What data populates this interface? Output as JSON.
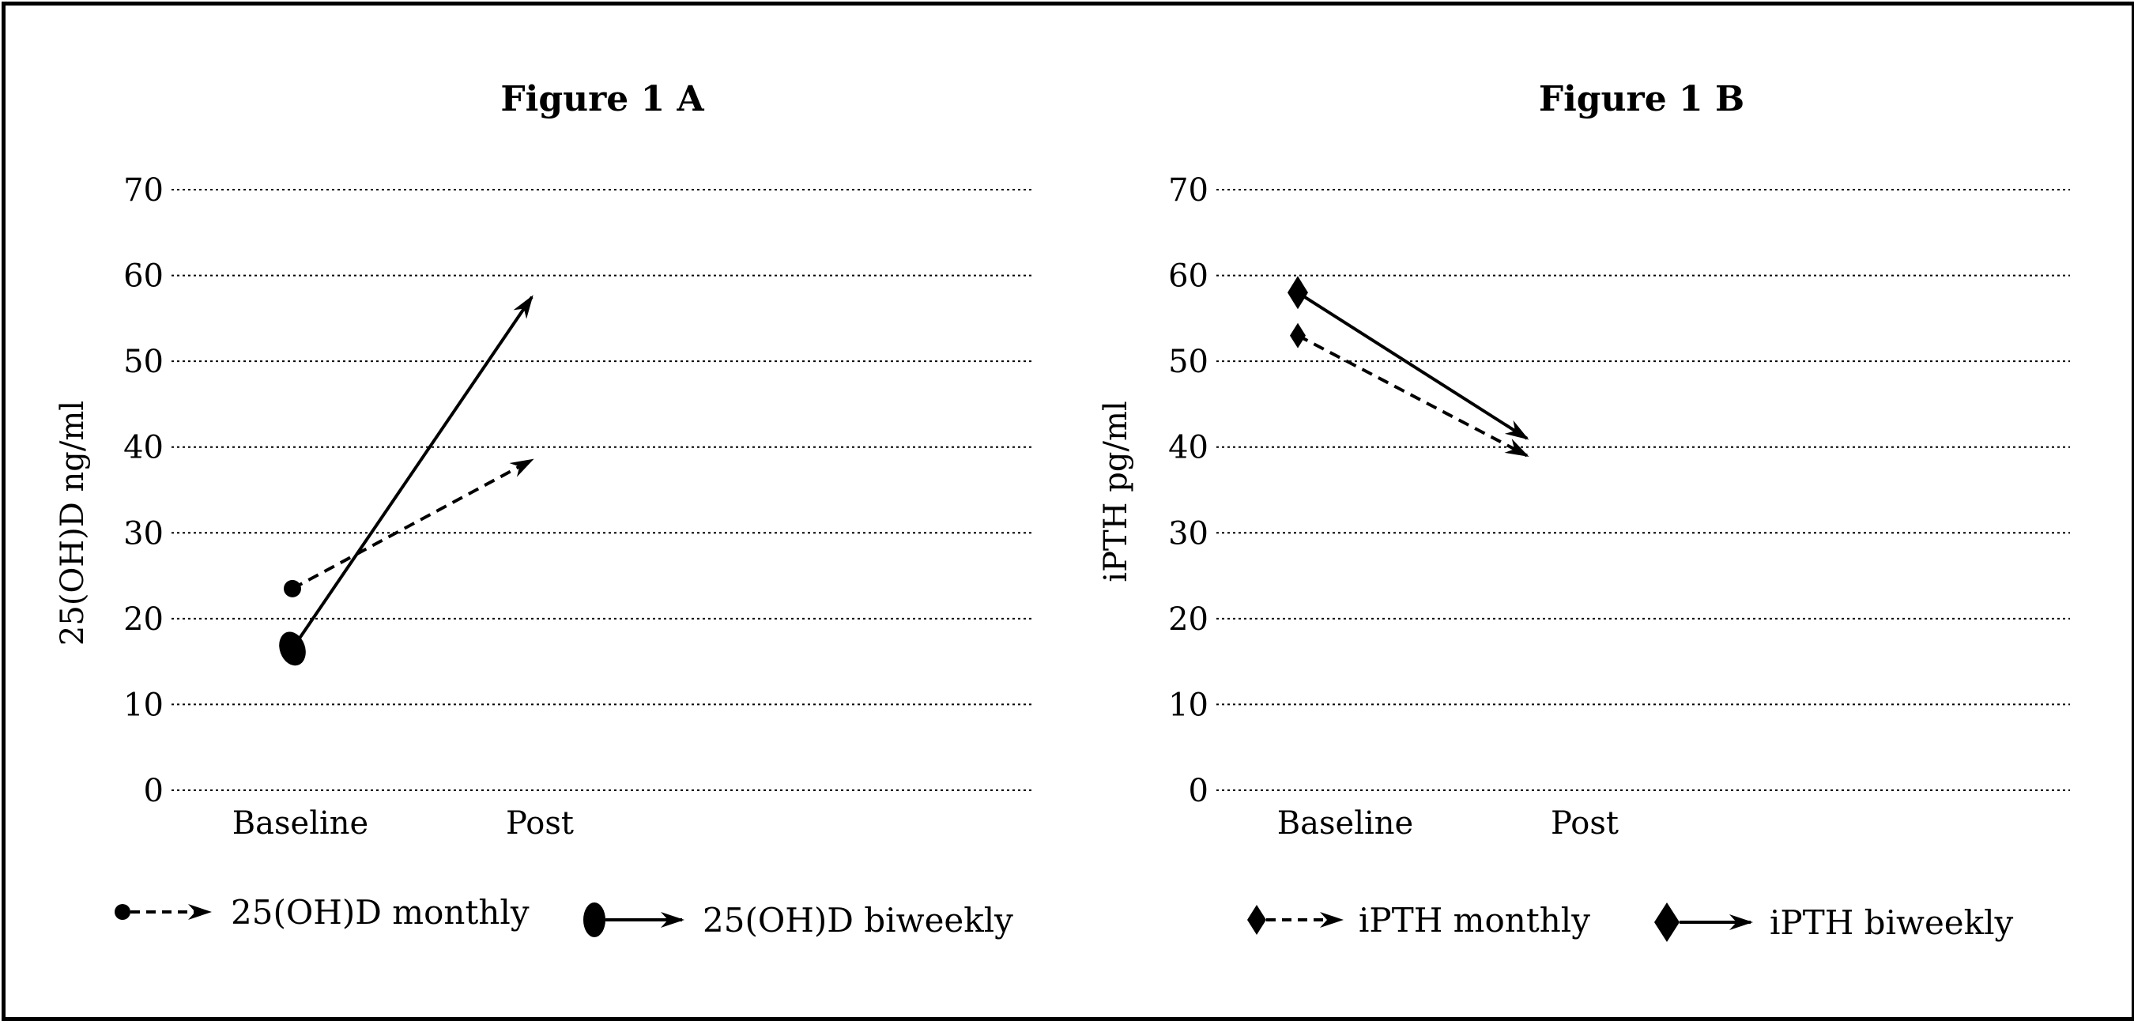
{
  "chart_data": [
    {
      "type": "line",
      "title": "Figure 1 A",
      "ylabel": "25(OH)D ng/ml",
      "xlabel": "",
      "categories": [
        "Baseline",
        "Post"
      ],
      "ylim": [
        0,
        70
      ],
      "yticks": [
        0,
        10,
        20,
        30,
        40,
        50,
        60,
        70
      ],
      "grid": true,
      "legend_position": "bottom",
      "series": [
        {
          "name": "25(OH)D monthly",
          "values": [
            23.5,
            38.5
          ],
          "style": "dashed",
          "marker": "small-circle"
        },
        {
          "name": "25(OH)D biweekly",
          "values": [
            16.5,
            57.5
          ],
          "style": "solid",
          "marker": "large-oval"
        }
      ]
    },
    {
      "type": "line",
      "title": "Figure 1 B",
      "ylabel": "iPTH pg/ml",
      "xlabel": "",
      "categories": [
        "Baseline",
        "Post"
      ],
      "ylim": [
        0,
        70
      ],
      "yticks": [
        0,
        10,
        20,
        30,
        40,
        50,
        60,
        70
      ],
      "grid": true,
      "legend_position": "bottom",
      "series": [
        {
          "name": "iPTH monthly",
          "values": [
            53.0,
            39.0
          ],
          "style": "dashed",
          "marker": "small-diamond"
        },
        {
          "name": "iPTH biweekly",
          "values": [
            58.0,
            41.0
          ],
          "style": "solid",
          "marker": "large-diamond"
        }
      ]
    }
  ]
}
